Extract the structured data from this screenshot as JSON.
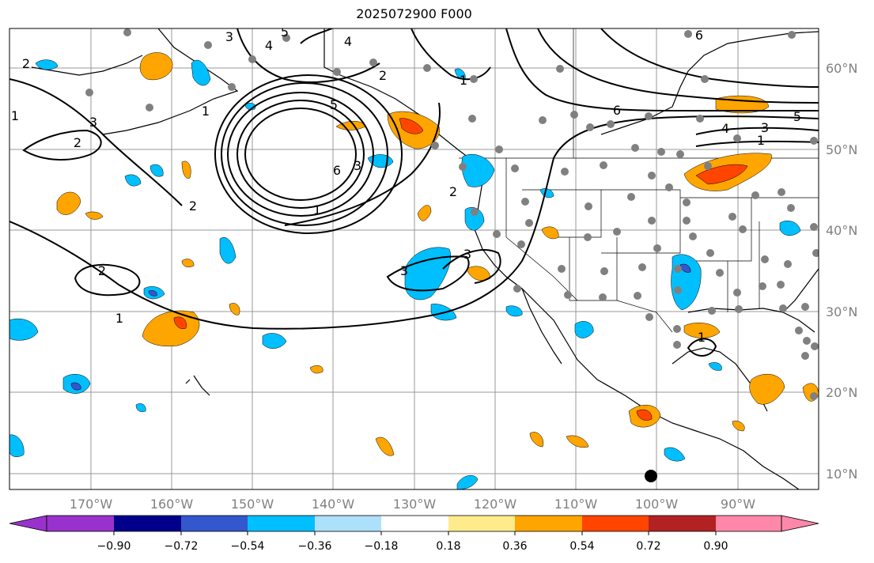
{
  "title": "2025072900 F000",
  "lon_labels": [
    "170°W",
    "160°W",
    "150°W",
    "140°W",
    "130°W",
    "120°W",
    "110°W",
    "100°W",
    "90°W"
  ],
  "lat_labels": [
    "60°N",
    "50°N",
    "40°N",
    "30°N",
    "20°N",
    "10°N"
  ],
  "colorbar": {
    "ticks": [
      "−0.90",
      "−0.72",
      "−0.54",
      "−0.36",
      "−0.18",
      "0.18",
      "0.36",
      "0.54",
      "0.72",
      "0.90"
    ],
    "colors": [
      "#9932CC",
      "#00008B",
      "#3357CC",
      "#00BFFF",
      "#ADE0FA",
      "#FFFFFF",
      "#FFEB8C",
      "#FFA500",
      "#FF4500",
      "#B22222",
      "#FF88AA"
    ]
  },
  "contour_labels": [
    "1",
    "2",
    "3",
    "4",
    "5",
    "6"
  ],
  "colors": {
    "land_station": "#808080",
    "contour": "#000000"
  }
}
